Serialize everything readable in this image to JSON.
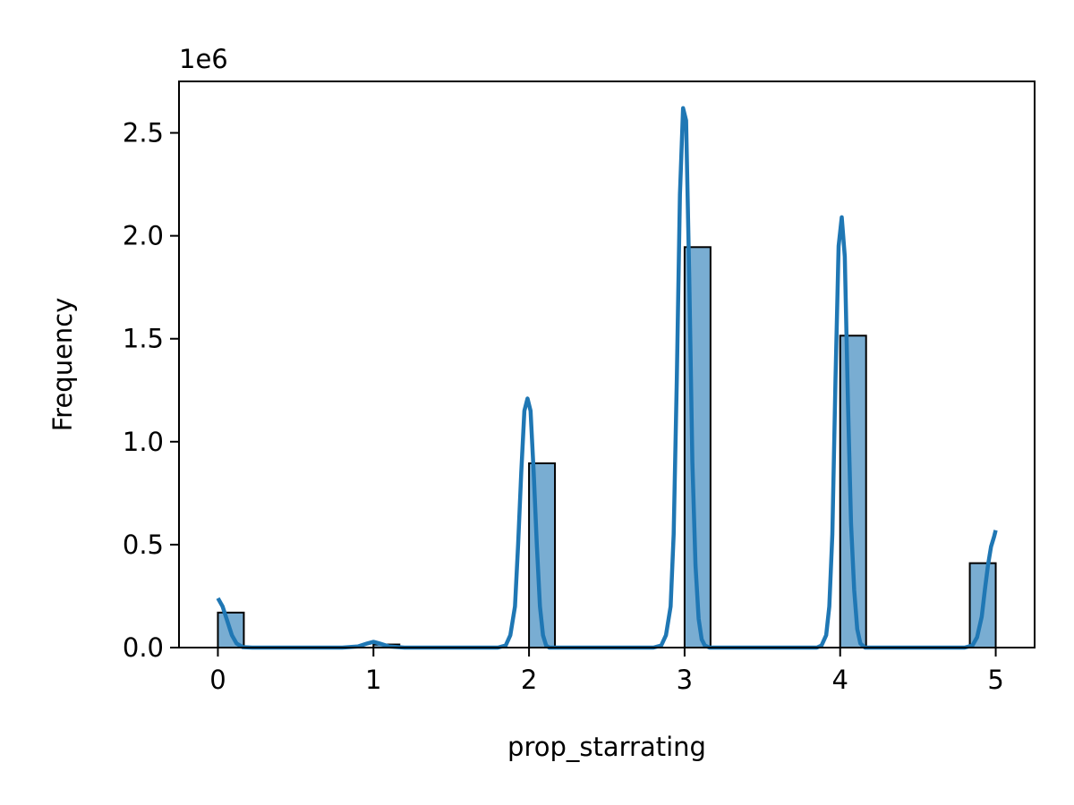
{
  "chart_data": {
    "type": "bar",
    "title": "",
    "xlabel": "prop_starrating",
    "ylabel": "Frequency",
    "y_offset_label": "1e6",
    "xlim": [
      -0.25,
      5.25
    ],
    "ylim": [
      0,
      2750000
    ],
    "x_ticks": [
      0,
      1,
      2,
      3,
      4,
      5
    ],
    "x_tick_labels": [
      "0",
      "1",
      "2",
      "3",
      "4",
      "5"
    ],
    "y_ticks": [
      0,
      500000,
      1000000,
      1500000,
      2000000,
      2500000
    ],
    "y_tick_labels": [
      "0.0",
      "0.5",
      "1.0",
      "1.5",
      "2.0",
      "2.5"
    ],
    "grid": false,
    "bin_width": 0.1667,
    "bars": [
      {
        "x_start": 0.0,
        "value": 170000
      },
      {
        "x_start": 1.0,
        "value": 15000
      },
      {
        "x_start": 2.0,
        "value": 895000
      },
      {
        "x_start": 3.0,
        "value": 1945000
      },
      {
        "x_start": 4.0,
        "value": 1515000
      },
      {
        "x_start": 4.8333,
        "value": 410000
      }
    ],
    "kde_curve": {
      "x": [
        0.0,
        0.03,
        0.06,
        0.09,
        0.12,
        0.16,
        0.22,
        0.3,
        0.5,
        0.8,
        0.9,
        0.96,
        1.0,
        1.04,
        1.1,
        1.2,
        1.5,
        1.8,
        1.85,
        1.88,
        1.91,
        1.93,
        1.95,
        1.97,
        1.99,
        2.01,
        2.03,
        2.05,
        2.07,
        2.09,
        2.11,
        2.13,
        2.16,
        2.2,
        2.3,
        2.6,
        2.8,
        2.85,
        2.88,
        2.91,
        2.93,
        2.95,
        2.97,
        2.99,
        3.01,
        3.03,
        3.05,
        3.07,
        3.09,
        3.11,
        3.13,
        3.16,
        3.2,
        3.3,
        3.6,
        3.8,
        3.85,
        3.88,
        3.91,
        3.93,
        3.95,
        3.97,
        3.99,
        4.01,
        4.03,
        4.05,
        4.07,
        4.09,
        4.11,
        4.13,
        4.16,
        4.2,
        4.3,
        4.6,
        4.8,
        4.85,
        4.88,
        4.91,
        4.93,
        4.95,
        4.97,
        4.99,
        5.0
      ],
      "y": [
        240000,
        200000,
        130000,
        60000,
        20000,
        2000,
        0,
        0,
        0,
        0,
        5000,
        20000,
        28000,
        20000,
        5000,
        0,
        0,
        0,
        10000,
        60000,
        200000,
        500000,
        850000,
        1150000,
        1210000,
        1150000,
        850000,
        500000,
        200000,
        60000,
        10000,
        0,
        0,
        0,
        0,
        0,
        0,
        10000,
        60000,
        200000,
        550000,
        1300000,
        2200000,
        2620000,
        2560000,
        1800000,
        900000,
        400000,
        140000,
        40000,
        10000,
        0,
        0,
        0,
        0,
        0,
        0,
        10000,
        60000,
        200000,
        550000,
        1300000,
        1950000,
        2090000,
        1900000,
        1200000,
        600000,
        280000,
        90000,
        20000,
        0,
        0,
        0,
        0,
        0,
        10000,
        50000,
        150000,
        280000,
        400000,
        490000,
        540000,
        570000
      ]
    },
    "colors": {
      "bar_fill": "#1f77b4",
      "bar_opacity": 0.6,
      "bar_edge": "#000000",
      "kde_line": "#1f77b4"
    }
  }
}
